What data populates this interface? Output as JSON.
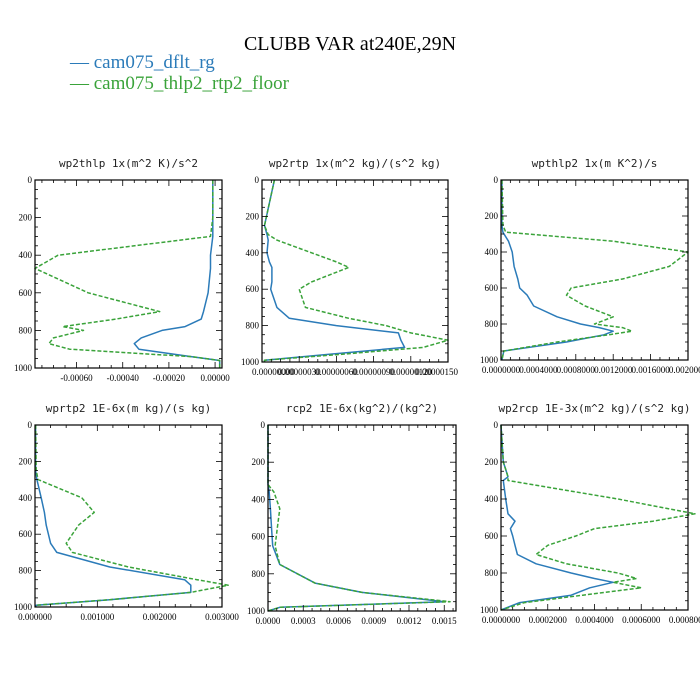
{
  "figure": {
    "title": "CLUBB VAR at240E,29N",
    "legend": [
      {
        "label": "cam075_dflt_rg",
        "color": "#2b7bb9"
      },
      {
        "label": "cam075_thlp2_rtp2_floor",
        "color": "#3aa33a"
      }
    ]
  },
  "chart_data": [
    {
      "type": "line",
      "title": "wp2thlp  1x(m^2 K)/s^2",
      "xlim": [
        -0.00078,
        3e-05
      ],
      "xticks": [
        "-0.00060",
        "-0.00040",
        "-0.00020",
        "0.00000"
      ],
      "xtick_values": [
        -0.0006,
        -0.0004,
        -0.0002,
        0.0
      ],
      "ylim": [
        1000,
        0
      ],
      "yticks": [
        "0",
        "200",
        "400",
        "600",
        "800",
        "1000"
      ],
      "y": [
        0,
        200,
        300,
        400,
        470,
        600,
        700,
        740,
        780,
        800,
        840,
        870,
        900,
        940,
        960,
        1000
      ],
      "series": [
        {
          "name": "cam075_dflt_rg",
          "color": "#2b7bb9",
          "dash": "none",
          "x": [
            -1e-05,
            -1e-05,
            -1e-05,
            -2e-05,
            -2e-05,
            -3e-05,
            -5e-05,
            -6e-05,
            -0.00013,
            -0.00023,
            -0.00032,
            -0.00035,
            -0.00033,
            -0.0001,
            2e-05,
            2e-05
          ]
        },
        {
          "name": "cam075_thlp2_rtp2_floor",
          "color": "#3aa33a",
          "dash": "4,2",
          "x": [
            -1e-05,
            -1e-05,
            -2e-05,
            -0.00068,
            -0.00078,
            -0.00055,
            -0.00024,
            -0.00043,
            -0.00066,
            -0.00057,
            -0.0007,
            -0.00072,
            -0.00063,
            -0.0001,
            2e-05,
            2e-05
          ]
        }
      ]
    },
    {
      "type": "line",
      "title": "wp2rtp  1x(m^2 kg)/(s^2 kg)",
      "xlim": [
        0.0,
        1.5e-06
      ],
      "xticks": [
        "0.00000000",
        "0.00000030",
        "0.00000060",
        "0.00000090",
        "0.00000120",
        "0.00000150"
      ],
      "xtick_values": [
        0.0,
        3e-07,
        6e-07,
        9e-07,
        1.2e-06,
        1.5e-06
      ],
      "ylim": [
        1000,
        0
      ],
      "yticks": [
        "0",
        "200",
        "400",
        "600",
        "800",
        "1000"
      ],
      "y": [
        0,
        250,
        300,
        330,
        400,
        450,
        480,
        560,
        600,
        700,
        760,
        800,
        840,
        880,
        920,
        960,
        990,
        1000
      ],
      "series": [
        {
          "name": "cam075_dflt_rg",
          "color": "#2b7bb9",
          "dash": "none",
          "x": [
            1e-07,
            2e-08,
            4e-08,
            5e-08,
            4e-08,
            6e-08,
            8e-08,
            8e-08,
            7e-08,
            1.2e-07,
            2.2e-07,
            6e-07,
            1.1e-06,
            1.12e-06,
            1.15e-06,
            5e-07,
            2e-08,
            2e-08
          ]
        },
        {
          "name": "cam075_thlp2_rtp2_floor",
          "color": "#3aa33a",
          "dash": "4,2",
          "x": [
            1e-07,
            2e-08,
            5e-08,
            1.2e-07,
            4e-07,
            6e-07,
            7e-07,
            4e-07,
            3e-07,
            3.5e-07,
            7e-07,
            1e-06,
            1.2e-06,
            1.5e-06,
            1.3e-06,
            6e-07,
            2e-08,
            2e-08
          ]
        }
      ]
    },
    {
      "type": "line",
      "title": "wpthlp2  1x(m K^2)/s",
      "xlim": [
        0.0,
        0.002
      ],
      "xticks": [
        "0.0000000",
        "0.0004000",
        "0.0008000",
        "0.0012000",
        "0.0016000",
        "0.0020000"
      ],
      "xtick_values": [
        0.0,
        0.0004,
        0.0008,
        0.0012,
        0.0016,
        0.002
      ],
      "ylim": [
        1000,
        0
      ],
      "yticks": [
        "0",
        "200",
        "400",
        "600",
        "800",
        "1000"
      ],
      "y": [
        0,
        250,
        290,
        340,
        400,
        480,
        550,
        600,
        640,
        700,
        760,
        800,
        820,
        840,
        860,
        900,
        950,
        1000
      ],
      "series": [
        {
          "name": "cam075_dflt_rg",
          "color": "#2b7bb9",
          "dash": "none",
          "x": [
            1e-05,
            1e-05,
            2e-05,
            8e-05,
            0.00012,
            0.00014,
            0.00018,
            0.0002,
            0.00028,
            0.00035,
            0.0006,
            0.00085,
            0.00105,
            0.0012,
            0.0011,
            0.0007,
            3e-05,
            1e-05
          ]
        },
        {
          "name": "cam075_thlp2_rtp2_floor",
          "color": "#3aa33a",
          "dash": "4,2",
          "x": [
            1e-05,
            2e-05,
            5e-05,
            0.0012,
            0.002,
            0.0018,
            0.0013,
            0.00075,
            0.0007,
            0.0009,
            0.0012,
            0.001,
            0.0013,
            0.0014,
            0.00115,
            0.0006,
            3e-05,
            1e-05
          ]
        }
      ]
    },
    {
      "type": "line",
      "title": "wprtp2  1E-6x(m kg)/(s kg)",
      "xlim": [
        0.0,
        0.003
      ],
      "xticks": [
        "0.000000",
        "0.001000",
        "0.002000",
        "0.003000"
      ],
      "xtick_values": [
        0.0,
        0.001,
        0.002,
        0.003
      ],
      "ylim": [
        1000,
        0
      ],
      "yticks": [
        "0",
        "200",
        "400",
        "600",
        "800",
        "1000"
      ],
      "y": [
        0,
        250,
        300,
        400,
        480,
        550,
        650,
        700,
        780,
        850,
        880,
        920,
        960,
        990,
        1000
      ],
      "series": [
        {
          "name": "cam075_dflt_rg",
          "color": "#2b7bb9",
          "dash": "none",
          "x": [
            1e-05,
            1e-05,
            3e-05,
            0.0001,
            0.00015,
            0.00018,
            0.00025,
            0.00035,
            0.0012,
            0.0024,
            0.0025,
            0.0025,
            0.0012,
            2e-05,
            1e-05
          ]
        },
        {
          "name": "cam075_thlp2_rtp2_floor",
          "color": "#3aa33a",
          "dash": "4,2",
          "x": [
            1e-05,
            2e-05,
            5e-05,
            0.00075,
            0.00095,
            0.0007,
            0.0005,
            0.0006,
            0.0015,
            0.0026,
            0.0031,
            0.0025,
            0.0012,
            2e-05,
            1e-05
          ]
        }
      ]
    },
    {
      "type": "line",
      "title": "rcp2  1E-6x(kg^2)/(kg^2)",
      "xlim": [
        0.0,
        0.0016
      ],
      "xticks": [
        "0.0000",
        "0.0003",
        "0.0006",
        "0.0009",
        "0.0012",
        "0.0015"
      ],
      "xtick_values": [
        0.0,
        0.0003,
        0.0006,
        0.0009,
        0.0012,
        0.0015
      ],
      "ylim": [
        1000,
        0
      ],
      "yticks": [
        "0",
        "200",
        "400",
        "600",
        "800",
        "1000"
      ],
      "y": [
        0,
        320,
        360,
        450,
        550,
        650,
        750,
        850,
        900,
        950,
        980,
        1000
      ],
      "series": [
        {
          "name": "cam075_dflt_rg",
          "color": "#2b7bb9",
          "dash": "none",
          "x": [
            0.0,
            0.0,
            1e-05,
            2e-05,
            3e-05,
            4e-05,
            0.0001,
            0.0004,
            0.0008,
            0.0015,
            0.0001,
            0.0
          ]
        },
        {
          "name": "cam075_thlp2_rtp2_floor",
          "color": "#3aa33a",
          "dash": "4,2",
          "x": [
            0.0,
            0.0,
            5e-05,
            0.0001,
            8e-05,
            6e-05,
            0.0001,
            0.0004,
            0.0008,
            0.00155,
            0.0001,
            0.0
          ]
        }
      ]
    },
    {
      "type": "line",
      "title": "wp2rcp  1E-3x(m^2 kg)/(s^2 kg)",
      "xlim": [
        0.0,
        0.0008
      ],
      "xticks": [
        "0.0000000",
        "0.0002000",
        "0.0004000",
        "0.0006000",
        "0.0008000"
      ],
      "xtick_values": [
        0.0,
        0.0002,
        0.0004,
        0.0006,
        0.0008
      ],
      "ylim": [
        1000,
        0
      ],
      "yticks": [
        "0",
        "200",
        "400",
        "600",
        "800",
        "1000"
      ],
      "y": [
        0,
        200,
        240,
        280,
        300,
        400,
        480,
        520,
        560,
        600,
        650,
        700,
        750,
        800,
        830,
        850,
        880,
        920,
        960,
        1000
      ],
      "series": [
        {
          "name": "cam075_dflt_rg",
          "color": "#2b7bb9",
          "dash": "none",
          "x": [
            0.0,
            1e-05,
            2e-05,
            3e-05,
            1e-05,
            2e-05,
            3e-05,
            6e-05,
            4e-05,
            5e-05,
            6e-05,
            7e-05,
            0.00015,
            0.0003,
            0.0004,
            0.00048,
            0.00038,
            0.0003,
            8e-05,
            0.0
          ]
        },
        {
          "name": "cam075_thlp2_rtp2_floor",
          "color": "#3aa33a",
          "dash": "4,2",
          "x": [
            0.0,
            1e-05,
            2e-05,
            3e-05,
            3e-05,
            0.0005,
            0.00083,
            0.00065,
            0.0004,
            0.00032,
            0.0002,
            0.00015,
            0.00028,
            0.0005,
            0.00058,
            0.00048,
            0.0006,
            0.00035,
            0.0001,
            0.0
          ]
        }
      ]
    }
  ]
}
